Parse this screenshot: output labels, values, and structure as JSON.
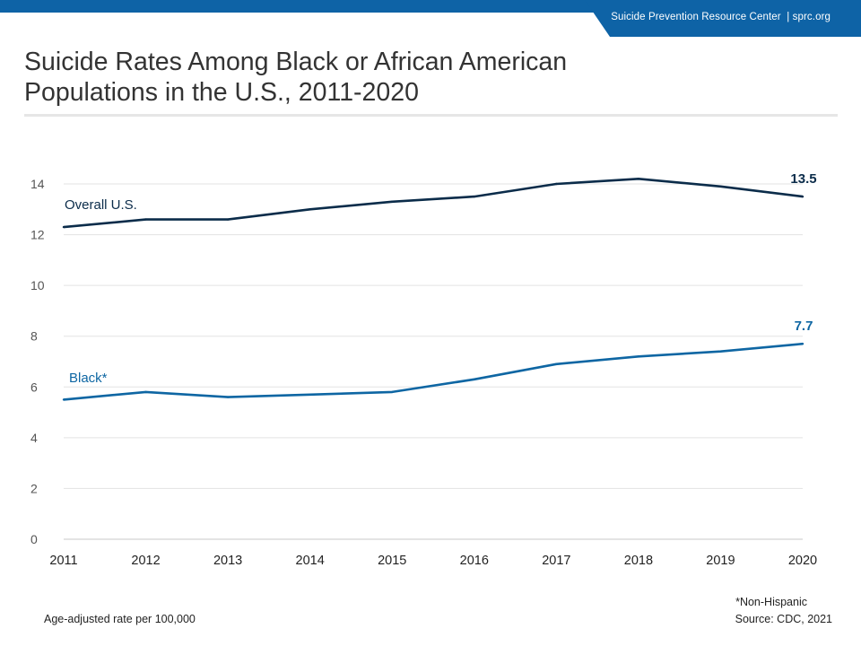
{
  "header": {
    "org": "Suicide Prevention Resource Center",
    "sep": "|",
    "site": "sprc.org"
  },
  "title": {
    "line1": "Suicide Rates Among Black or African American",
    "line2": "Populations in the U.S., 2011-2020"
  },
  "chart_data": {
    "type": "line",
    "x": [
      "2011",
      "2012",
      "2013",
      "2014",
      "2015",
      "2016",
      "2017",
      "2018",
      "2019",
      "2020"
    ],
    "ylim": [
      0,
      14
    ],
    "yticks": [
      0,
      2,
      4,
      6,
      8,
      10,
      12,
      14
    ],
    "grid": true,
    "series": [
      {
        "name": "Overall U.S.",
        "color": "#0b2c4a",
        "values": [
          12.3,
          12.6,
          12.6,
          13.0,
          13.3,
          13.5,
          14.0,
          14.2,
          13.9,
          13.5
        ],
        "end_label": "13.5"
      },
      {
        "name": "Black*",
        "color": "#0e66a3",
        "values": [
          5.5,
          5.8,
          5.6,
          5.7,
          5.8,
          6.3,
          6.9,
          7.2,
          7.4,
          7.7
        ],
        "end_label": "7.7"
      }
    ]
  },
  "footer": {
    "note": "*Non-Hispanic",
    "source": "Source: CDC, 2021",
    "unit": "Age-adjusted rate per 100,000"
  }
}
